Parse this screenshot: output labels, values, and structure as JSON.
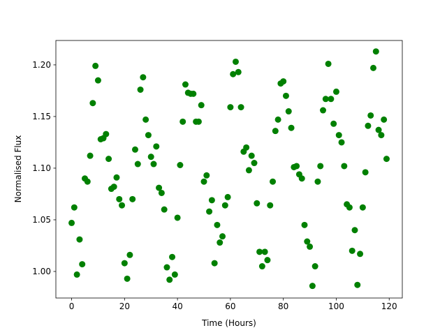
{
  "chart_data": {
    "type": "scatter",
    "x_label": "Time (Hours)",
    "y_label": "Normalised Flux",
    "color": "#008000",
    "x": [
      0,
      1,
      2,
      3,
      4,
      5,
      6,
      7,
      8,
      9,
      10,
      11,
      12,
      13,
      14,
      15,
      16,
      17,
      18,
      19,
      20,
      21,
      22,
      23,
      24,
      25,
      26,
      27,
      28,
      29,
      30,
      31,
      32,
      33,
      34,
      35,
      36,
      37,
      38,
      39,
      40,
      41,
      42,
      43,
      44,
      45,
      46,
      47,
      48,
      49,
      50,
      51,
      52,
      53,
      54,
      55,
      56,
      57,
      58,
      59,
      60,
      61,
      62,
      63,
      64,
      65,
      66,
      67,
      68,
      69,
      70,
      71,
      72,
      73,
      74,
      75,
      76,
      77,
      78,
      79,
      80,
      81,
      82,
      83,
      84,
      85,
      86,
      87,
      88,
      89,
      90,
      91,
      92,
      93,
      94,
      95,
      96,
      97,
      98,
      99,
      100,
      101,
      102,
      103,
      104,
      105,
      106,
      107,
      108,
      109,
      110,
      111,
      112,
      113,
      114,
      115,
      116,
      117,
      118,
      119
    ],
    "values": [
      1.047,
      1.062,
      0.997,
      1.031,
      1.007,
      1.09,
      1.087,
      1.112,
      1.163,
      1.199,
      1.185,
      1.128,
      1.129,
      1.133,
      1.109,
      1.08,
      1.082,
      1.091,
      1.07,
      1.064,
      1.008,
      0.993,
      1.016,
      1.07,
      1.118,
      1.104,
      1.176,
      1.188,
      1.147,
      1.132,
      1.111,
      1.104,
      1.121,
      1.081,
      1.076,
      1.06,
      1.004,
      0.992,
      1.014,
      0.997,
      1.052,
      1.103,
      1.145,
      1.181,
      1.173,
      1.172,
      1.172,
      1.145,
      1.145,
      1.161,
      1.087,
      1.093,
      1.058,
      1.069,
      1.008,
      1.045,
      1.028,
      1.034,
      1.064,
      1.072,
      1.159,
      1.191,
      1.203,
      1.193,
      1.159,
      1.116,
      1.12,
      1.098,
      1.112,
      1.105,
      1.066,
      1.019,
      1.005,
      1.019,
      1.011,
      1.064,
      1.087,
      1.136,
      1.147,
      1.182,
      1.184,
      1.17,
      1.155,
      1.139,
      1.101,
      1.102,
      1.094,
      1.09,
      1.045,
      1.029,
      1.024,
      0.986,
      1.005,
      1.087,
      1.102,
      1.156,
      1.167,
      1.201,
      1.167,
      1.143,
      1.174,
      1.132,
      1.125,
      1.102,
      1.065,
      1.062,
      1.02,
      1.04,
      0.987,
      1.017,
      1.062,
      1.096,
      1.141,
      1.151,
      1.197,
      1.213,
      1.137,
      1.132,
      1.147,
      1.109
    ],
    "xlim": [
      -5.95,
      124.95
    ],
    "ylim": [
      0.9743,
      1.2236
    ],
    "xticks": [
      0,
      20,
      40,
      60,
      80,
      100,
      120
    ],
    "yticks": [
      {
        "value": 1.0,
        "label": "1.00"
      },
      {
        "value": 1.05,
        "label": "1.05"
      },
      {
        "value": 1.1,
        "label": "1.10"
      },
      {
        "value": 1.15,
        "label": "1.15"
      },
      {
        "value": 1.2,
        "label": "1.20"
      }
    ]
  }
}
